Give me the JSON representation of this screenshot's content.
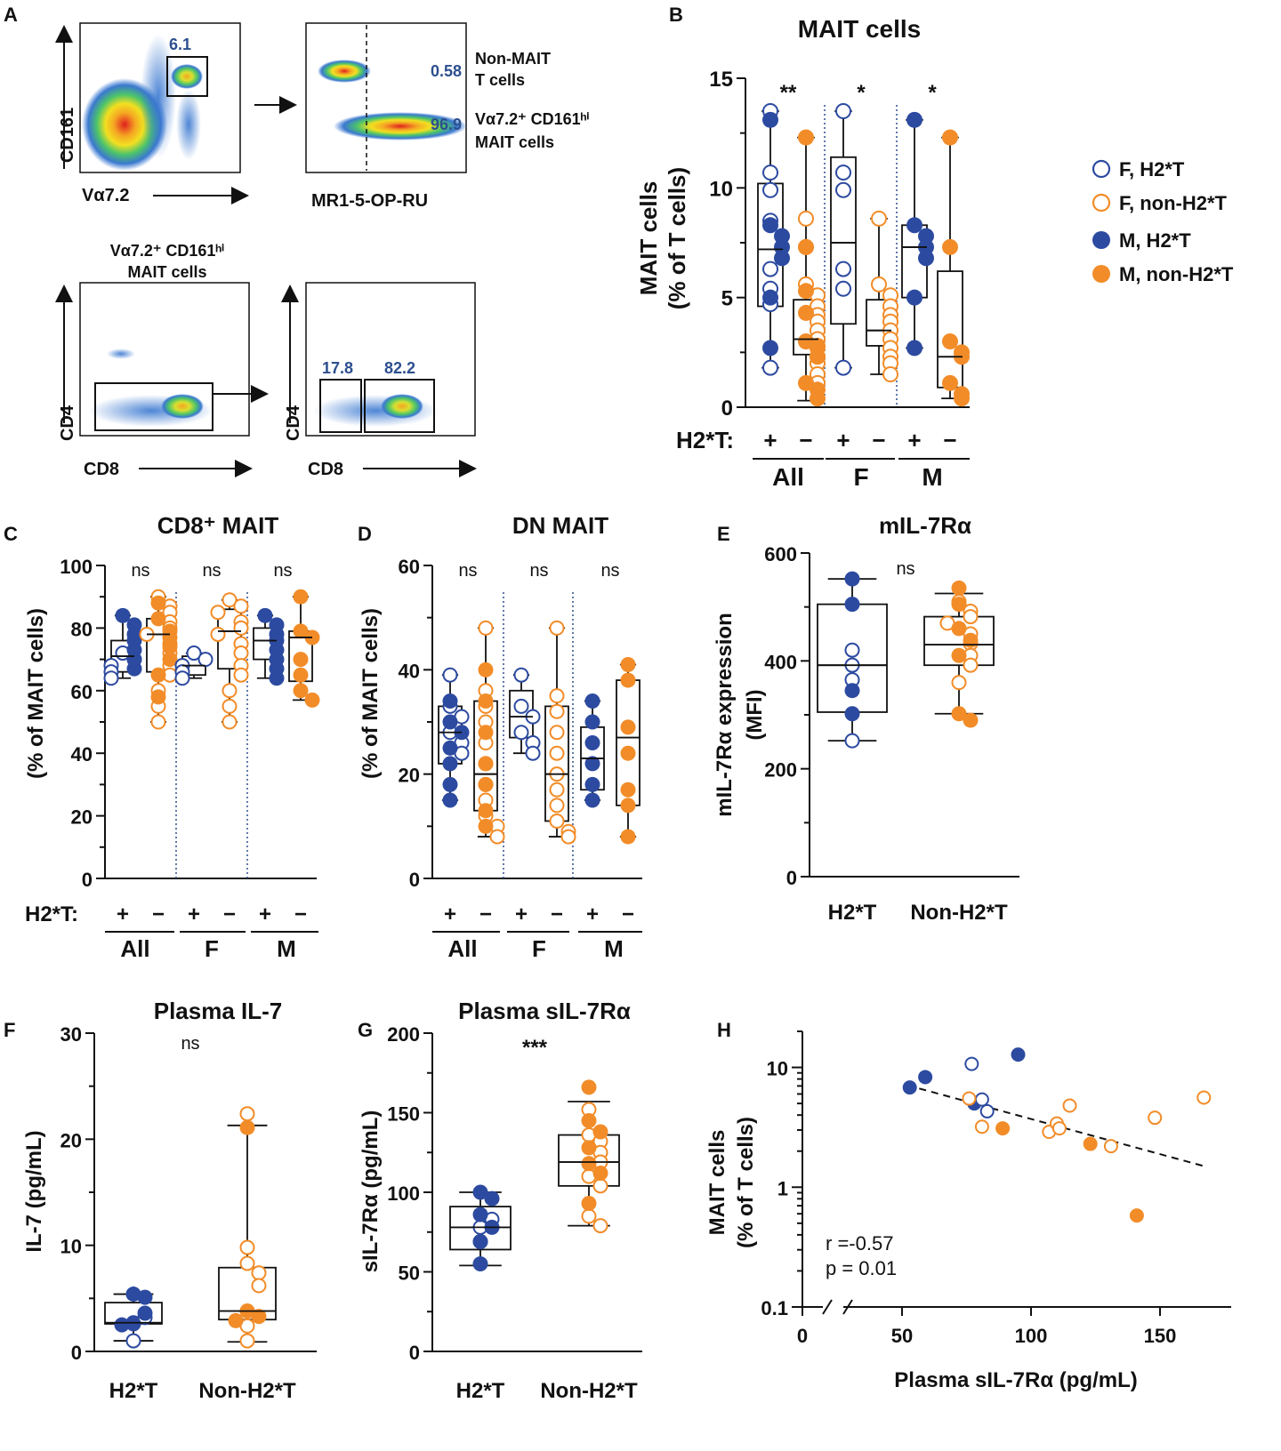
{
  "colors": {
    "blue": "#2c4aa0",
    "orange": "#f28c28",
    "numblue": "#2c5f9e"
  },
  "panel_letters": {
    "A": "A",
    "B": "B",
    "C": "C",
    "D": "D",
    "E": "E",
    "F": "F",
    "G": "G",
    "H": "H"
  },
  "panel_a": {
    "plot1": {
      "ylabel": "CD161",
      "xlabel": "Vα7.2",
      "gate": "6.1"
    },
    "plot2": {
      "xlabel": "MR1-5-OP-RU",
      "gate_top": "0.58",
      "gate_bottom": "96.9",
      "label_top_1": "Non-MAIT",
      "label_top_2": "T cells",
      "label_bottom_1": "Vα7.2⁺ CD161ʰⁱ",
      "label_bottom_2": "MAIT cells"
    },
    "plot3": {
      "title_1": "Vα7.2⁺ CD161ʰⁱ",
      "title_2": "MAIT cells",
      "ylabel": "CD4",
      "xlabel": "CD8"
    },
    "plot4": {
      "ylabel": "CD4",
      "xlabel": "CD8",
      "gate_left": "17.8",
      "gate_right": "82.2"
    }
  },
  "legend": {
    "items": [
      {
        "label": "F, H2*T",
        "color": "blue",
        "filled": false
      },
      {
        "label": "F, non-H2*T",
        "color": "orange",
        "filled": false
      },
      {
        "label": "M, H2*T",
        "color": "blue",
        "filled": true
      },
      {
        "label": "M, non-H2*T",
        "color": "orange",
        "filled": true
      }
    ]
  },
  "chart_data": [
    {
      "id": "B",
      "type": "box",
      "title": "MAIT cells",
      "ylabel_1": "MAIT cells",
      "ylabel_2": "(% of T cells)",
      "ylim": [
        0,
        15
      ],
      "yticks": [
        "0",
        "5",
        "10",
        "15"
      ],
      "group_row_label": "H2*T:",
      "signs": [
        "+",
        "−",
        "+",
        "−",
        "+",
        "−"
      ],
      "group_labels": [
        "All",
        "F",
        "M"
      ],
      "significance": [
        "**",
        "*",
        "*"
      ],
      "boxes": [
        {
          "q1": 4.6,
          "median": 7.2,
          "q3": 10.2,
          "min": 1.8,
          "max": 13.5
        },
        {
          "q1": 2.4,
          "median": 3.1,
          "q3": 4.9,
          "min": 0.3,
          "max": 12.3
        },
        {
          "q1": 3.8,
          "median": 7.5,
          "q3": 11.4,
          "min": 1.8,
          "max": 13.5
        },
        {
          "q1": 2.8,
          "median": 3.5,
          "q3": 4.9,
          "min": 1.5,
          "max": 8.6
        },
        {
          "q1": 5.0,
          "median": 7.3,
          "q3": 8.3,
          "min": 2.7,
          "max": 13.1
        },
        {
          "q1": 0.9,
          "median": 2.3,
          "q3": 6.2,
          "min": 0.4,
          "max": 12.3
        }
      ],
      "points": [
        {
          "group": 0,
          "color": "blue",
          "filled": false,
          "values": [
            13.5,
            10.7,
            9.9,
            8.5,
            6.3,
            5.4,
            4.7,
            1.8
          ]
        },
        {
          "group": 0,
          "color": "blue",
          "filled": true,
          "values": [
            13.1,
            8.3,
            7.8,
            7.3,
            6.8,
            5.0,
            2.7
          ]
        },
        {
          "group": 1,
          "color": "orange",
          "filled": false,
          "values": [
            8.6,
            7.3,
            5.6,
            5.1,
            4.6,
            4.2,
            3.9,
            3.5,
            3.1,
            2.7,
            2.3,
            2.0,
            1.5,
            1.1
          ]
        },
        {
          "group": 1,
          "color": "orange",
          "filled": true,
          "values": [
            12.3,
            7.3,
            5.3,
            4.3,
            3.0,
            2.8,
            2.3,
            1.1,
            0.8,
            0.4
          ]
        },
        {
          "group": 2,
          "color": "blue",
          "filled": false,
          "values": [
            13.5,
            10.7,
            9.9,
            6.3,
            5.4,
            1.8
          ]
        },
        {
          "group": 3,
          "color": "orange",
          "filled": false,
          "values": [
            8.6,
            5.6,
            5.1,
            4.6,
            4.2,
            3.9,
            3.5,
            3.1,
            2.7,
            2.3,
            2.0,
            1.5
          ]
        },
        {
          "group": 4,
          "color": "blue",
          "filled": true,
          "values": [
            13.1,
            8.3,
            7.8,
            7.3,
            6.8,
            5.0,
            2.7
          ]
        },
        {
          "group": 5,
          "color": "orange",
          "filled": true,
          "values": [
            12.3,
            7.3,
            3.0,
            2.5,
            2.3,
            1.1,
            0.6,
            0.4
          ]
        }
      ]
    },
    {
      "id": "C",
      "type": "box",
      "title": "CD8⁺ MAIT",
      "ylabel_1": "(% of MAIT cells)",
      "ylim": [
        0,
        100
      ],
      "yticks": [
        "0",
        "20",
        "40",
        "60",
        "80",
        "100"
      ],
      "group_row_label": "H2*T:",
      "signs": [
        "+",
        "−",
        "+",
        "−",
        "+",
        "−"
      ],
      "group_labels": [
        "All",
        "F",
        "M"
      ],
      "significance": [
        "ns",
        "ns",
        "ns"
      ],
      "boxes": [
        {
          "q1": 66,
          "median": 71,
          "q3": 76,
          "min": 64,
          "max": 84
        },
        {
          "q1": 66,
          "median": 78,
          "q3": 83,
          "min": 50,
          "max": 90
        },
        {
          "q1": 65,
          "median": 68,
          "q3": 71,
          "min": 64,
          "max": 72
        },
        {
          "q1": 67,
          "median": 79,
          "q3": 86,
          "min": 50,
          "max": 89
        },
        {
          "q1": 70,
          "median": 76,
          "q3": 80,
          "min": 64,
          "max": 84
        },
        {
          "q1": 63,
          "median": 77,
          "q3": 79,
          "min": 57,
          "max": 90
        }
      ],
      "points": [
        {
          "group": 0,
          "color": "blue",
          "filled": false,
          "values": [
            72,
            70,
            68,
            66,
            64
          ]
        },
        {
          "group": 0,
          "color": "blue",
          "filled": true,
          "values": [
            84,
            81,
            78,
            76,
            73,
            70,
            67
          ]
        },
        {
          "group": 1,
          "color": "orange",
          "filled": false,
          "values": [
            90,
            87,
            85,
            82,
            80,
            78,
            75,
            72,
            68,
            65,
            60,
            55,
            50
          ]
        },
        {
          "group": 1,
          "color": "orange",
          "filled": true,
          "values": [
            88,
            83,
            79,
            77,
            74,
            70,
            65,
            58
          ]
        },
        {
          "group": 2,
          "color": "blue",
          "filled": false,
          "values": [
            72,
            70,
            68,
            66,
            64
          ]
        },
        {
          "group": 3,
          "color": "orange",
          "filled": false,
          "values": [
            89,
            87,
            85,
            82,
            80,
            78,
            75,
            72,
            68,
            65,
            60,
            55,
            50
          ]
        },
        {
          "group": 4,
          "color": "blue",
          "filled": true,
          "values": [
            84,
            81,
            78,
            76,
            73,
            70,
            67,
            64
          ]
        },
        {
          "group": 5,
          "color": "orange",
          "filled": true,
          "values": [
            90,
            79,
            77,
            70,
            65,
            60,
            57
          ]
        }
      ]
    },
    {
      "id": "D",
      "type": "box",
      "title": "DN MAIT",
      "ylabel_1": "(% of MAIT cells)",
      "ylim": [
        0,
        60
      ],
      "yticks": [
        "0",
        "20",
        "40",
        "60"
      ],
      "group_row_label": "",
      "signs": [
        "+",
        "−",
        "+",
        "−",
        "+",
        "−"
      ],
      "group_labels": [
        "All",
        "F",
        "M"
      ],
      "significance": [
        "ns",
        "ns",
        "ns"
      ],
      "boxes": [
        {
          "q1": 22,
          "median": 28,
          "q3": 33,
          "min": 15,
          "max": 39
        },
        {
          "q1": 13,
          "median": 20,
          "q3": 34,
          "min": 8,
          "max": 48
        },
        {
          "q1": 27,
          "median": 31,
          "q3": 36,
          "min": 24,
          "max": 39
        },
        {
          "q1": 11,
          "median": 20,
          "q3": 33,
          "min": 8,
          "max": 48
        },
        {
          "q1": 17,
          "median": 23,
          "q3": 29,
          "min": 15,
          "max": 34
        },
        {
          "q1": 14,
          "median": 27,
          "q3": 38,
          "min": 8,
          "max": 41
        }
      ],
      "points": [
        {
          "group": 0,
          "color": "blue",
          "filled": false,
          "values": [
            39,
            33,
            31,
            28,
            26,
            24
          ]
        },
        {
          "group": 0,
          "color": "blue",
          "filled": true,
          "values": [
            34,
            30,
            28,
            25,
            22,
            18,
            15
          ]
        },
        {
          "group": 1,
          "color": "orange",
          "filled": false,
          "values": [
            48,
            36,
            33,
            30,
            26,
            22,
            18,
            15,
            12,
            10,
            8
          ]
        },
        {
          "group": 1,
          "color": "orange",
          "filled": true,
          "values": [
            40,
            34,
            28,
            22,
            18,
            13,
            10
          ]
        },
        {
          "group": 2,
          "color": "blue",
          "filled": false,
          "values": [
            39,
            33,
            31,
            28,
            26,
            24
          ]
        },
        {
          "group": 3,
          "color": "orange",
          "filled": false,
          "values": [
            48,
            35,
            32,
            28,
            24,
            20,
            17,
            14,
            11,
            9,
            8
          ]
        },
        {
          "group": 4,
          "color": "blue",
          "filled": true,
          "values": [
            34,
            30,
            26,
            22,
            18,
            15
          ]
        },
        {
          "group": 5,
          "color": "orange",
          "filled": true,
          "values": [
            41,
            38,
            29,
            24,
            17,
            14,
            8
          ]
        }
      ]
    },
    {
      "id": "E",
      "type": "box",
      "title": "mIL-7Rα",
      "ylabel_1": "mIL-7Rα expression",
      "ylabel_2": "(MFI)",
      "ylim": [
        0,
        600
      ],
      "yticks": [
        "0",
        "200",
        "400",
        "600"
      ],
      "group_labels": [
        "H2*T",
        "Non-H2*T"
      ],
      "significance": [
        "ns"
      ],
      "boxes": [
        {
          "q1": 305,
          "median": 392,
          "q3": 505,
          "min": 252,
          "max": 552
        },
        {
          "q1": 392,
          "median": 430,
          "q3": 482,
          "min": 302,
          "max": 525
        }
      ],
      "points": [
        {
          "group": 0,
          "color": "blue",
          "filled": false,
          "values": [
            420,
            392,
            365,
            252
          ]
        },
        {
          "group": 0,
          "color": "blue",
          "filled": true,
          "values": [
            552,
            505,
            345,
            302
          ]
        },
        {
          "group": 1,
          "color": "orange",
          "filled": false,
          "values": [
            510,
            492,
            482,
            470,
            450,
            432,
            410,
            392,
            360
          ]
        },
        {
          "group": 1,
          "color": "orange",
          "filled": true,
          "values": [
            535,
            505,
            460,
            438,
            410,
            302,
            290
          ]
        }
      ]
    },
    {
      "id": "F",
      "type": "box",
      "title": "Plasma IL-7",
      "ylabel_1": "IL-7 (pg/mL)",
      "ylim": [
        0,
        30
      ],
      "yticks": [
        "0",
        "10",
        "20",
        "30"
      ],
      "group_labels": [
        "H2*T",
        "Non-H2*T"
      ],
      "significance": [
        "ns"
      ],
      "boxes": [
        {
          "q1": 2.6,
          "median": 2.7,
          "q3": 4.6,
          "min": 1.0,
          "max": 5.4
        },
        {
          "q1": 3.0,
          "median": 3.8,
          "q3": 7.9,
          "min": 0.9,
          "max": 21.3
        }
      ],
      "points": [
        {
          "group": 0,
          "color": "blue",
          "filled": false,
          "values": [
            2.7,
            1.0,
            3.2
          ]
        },
        {
          "group": 0,
          "color": "blue",
          "filled": true,
          "values": [
            5.4,
            5.1,
            2.6,
            3.6,
            2.5
          ]
        },
        {
          "group": 1,
          "color": "orange",
          "filled": false,
          "values": [
            22.4,
            9.8,
            8.3,
            7.4,
            6.2,
            3.8,
            2.4,
            1.0
          ]
        },
        {
          "group": 1,
          "color": "orange",
          "filled": true,
          "values": [
            21.1,
            3.8,
            3.3,
            2.9
          ]
        }
      ]
    },
    {
      "id": "G",
      "type": "box",
      "title": "Plasma sIL-7Rα",
      "ylabel_1": "sIL-7Rα (pg/mL)",
      "ylim": [
        0,
        200
      ],
      "yticks": [
        "0",
        "50",
        "100",
        "150",
        "200"
      ],
      "group_labels": [
        "H2*T",
        "Non-H2*T"
      ],
      "significance": [
        "***"
      ],
      "boxes": [
        {
          "q1": 64,
          "median": 78,
          "q3": 91,
          "min": 54,
          "max": 100
        },
        {
          "q1": 104,
          "median": 119,
          "q3": 136,
          "min": 79,
          "max": 157
        }
      ],
      "points": [
        {
          "group": 0,
          "color": "blue",
          "filled": false,
          "values": [
            78,
            83,
            69
          ]
        },
        {
          "group": 0,
          "color": "blue",
          "filled": true,
          "values": [
            100,
            96,
            86,
            78,
            69,
            55
          ]
        },
        {
          "group": 1,
          "color": "orange",
          "filled": false,
          "values": [
            152,
            136,
            132,
            125,
            119,
            110,
            104,
            85,
            79
          ]
        },
        {
          "group": 1,
          "color": "orange",
          "filled": true,
          "values": [
            166,
            145,
            138,
            128,
            118,
            112,
            93
          ]
        }
      ]
    },
    {
      "id": "H",
      "type": "scatter",
      "xlabel": "Plasma sIL-7Rα (pg/mL)",
      "ylabel_1": "MAIT cells",
      "ylabel_2": "(% of T cells)",
      "xlim": [
        40,
        170
      ],
      "ylim": [
        0.1,
        20
      ],
      "yscale": "log",
      "xticks": [
        "0",
        "50",
        "100",
        "150"
      ],
      "yticks": [
        "0.1",
        "1",
        "10"
      ],
      "stats_1": "r =-0.57",
      "stats_2": "p = 0.01",
      "trendline": {
        "x": [
          52,
          167
        ],
        "y": [
          7.1,
          1.5
        ]
      },
      "points": [
        {
          "color": "blue",
          "filled": true,
          "xy": [
            [
              53,
              6.8
            ],
            [
              59,
              8.3
            ],
            [
              95,
              12.8
            ],
            [
              78,
              5.0
            ]
          ]
        },
        {
          "color": "blue",
          "filled": false,
          "xy": [
            [
              77,
              10.7
            ],
            [
              81,
              5.4
            ],
            [
              83,
              4.3
            ]
          ]
        },
        {
          "color": "orange",
          "filled": false,
          "xy": [
            [
              76,
              5.5
            ],
            [
              81,
              3.2
            ],
            [
              107,
              2.9
            ],
            [
              110,
              3.4
            ],
            [
              111,
              3.1
            ],
            [
              115,
              4.8
            ],
            [
              131,
              2.2
            ],
            [
              148,
              3.8
            ],
            [
              167,
              5.6
            ]
          ]
        },
        {
          "color": "orange",
          "filled": true,
          "xy": [
            [
              89,
              3.1
            ],
            [
              123,
              2.3
            ],
            [
              141,
              0.58
            ]
          ]
        }
      ]
    }
  ]
}
